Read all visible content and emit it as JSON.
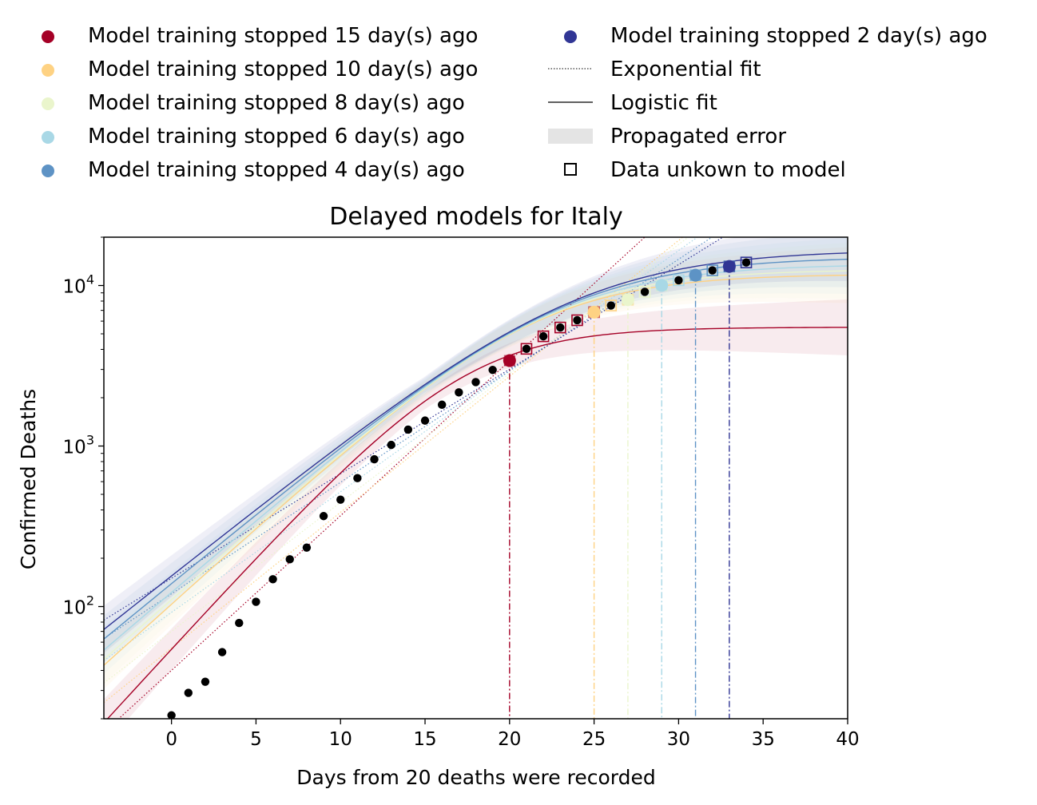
{
  "chart_data": {
    "type": "scatter",
    "title": "Delayed models for Italy",
    "xlabel": "Days from 20 deaths were recorded",
    "ylabel": "Confirmed Deaths",
    "xlim": [
      -4,
      40
    ],
    "ylim": [
      20,
      20000
    ],
    "yscale": "log",
    "grid": false,
    "legend_placement": "above-plot",
    "x_ticks": [
      0,
      5,
      10,
      15,
      20,
      25,
      30,
      35,
      40
    ],
    "y_ticks": [
      {
        "value": 100,
        "base": "10",
        "exp": "2"
      },
      {
        "value": 1000,
        "base": "10",
        "exp": "3"
      },
      {
        "value": 10000,
        "base": "10",
        "exp": "4"
      }
    ],
    "observed": {
      "x": [
        0,
        1,
        2,
        3,
        4,
        5,
        6,
        7,
        8,
        9,
        10,
        11,
        12,
        13,
        14,
        15,
        16,
        17,
        18,
        19,
        20,
        21,
        22,
        23,
        24,
        25,
        26,
        27,
        28,
        29,
        30,
        31,
        32,
        33,
        34
      ],
      "y": [
        21,
        29,
        34,
        52,
        79,
        107,
        148,
        197,
        233,
        366,
        463,
        631,
        827,
        1016,
        1266,
        1441,
        1809,
        2158,
        2503,
        2978,
        3405,
        4032,
        4825,
        5476,
        6077,
        6820,
        7503,
        8165,
        9134,
        10023,
        10779,
        11591,
        12428,
        13155,
        13915
      ]
    },
    "unknown_marker_color": "#000000",
    "series": [
      {
        "name": "Model training stopped 15 day(s) ago",
        "color": "#a50026",
        "cutoff": 20,
        "exp": {
          "a": 40,
          "b": 0.222
        },
        "log": {
          "K": 5500,
          "r": 0.265,
          "t0": 17.4
        }
      },
      {
        "name": "Model training stopped 10 day(s) ago",
        "color": "#fed283",
        "cutoff": 25,
        "exp": {
          "a": 55,
          "b": 0.195
        },
        "log": {
          "K": 11800,
          "r": 0.22,
          "t0": 21.5
        }
      },
      {
        "name": "Model training stopped 8 day(s) ago",
        "color": "#eaf5cc",
        "cutoff": 27,
        "exp": {
          "a": 70,
          "b": 0.185
        },
        "log": {
          "K": 12600,
          "r": 0.215,
          "t0": 22.0
        }
      },
      {
        "name": "Model training stopped 6 day(s) ago",
        "color": "#a9d8e6",
        "cutoff": 29,
        "exp": {
          "a": 92,
          "b": 0.173
        },
        "log": {
          "K": 13600,
          "r": 0.208,
          "t0": 22.6
        }
      },
      {
        "name": "Model training stopped 4 day(s) ago",
        "color": "#5e93c5",
        "cutoff": 31,
        "exp": {
          "a": 120,
          "b": 0.16
        },
        "log": {
          "K": 15100,
          "r": 0.2,
          "t0": 23.4
        }
      },
      {
        "name": "Model training stopped 2 day(s) ago",
        "color": "#313695",
        "cutoff": 33,
        "exp": {
          "a": 150,
          "b": 0.15
        },
        "log": {
          "K": 16700,
          "r": 0.193,
          "t0": 24.2
        }
      }
    ],
    "legend_extra": [
      {
        "key": "exp",
        "label": "Exponential fit"
      },
      {
        "key": "log",
        "label": "Logistic fit"
      },
      {
        "key": "err",
        "label": "Propagated error"
      },
      {
        "key": "unknown",
        "label": "Data unkown to model"
      }
    ]
  }
}
